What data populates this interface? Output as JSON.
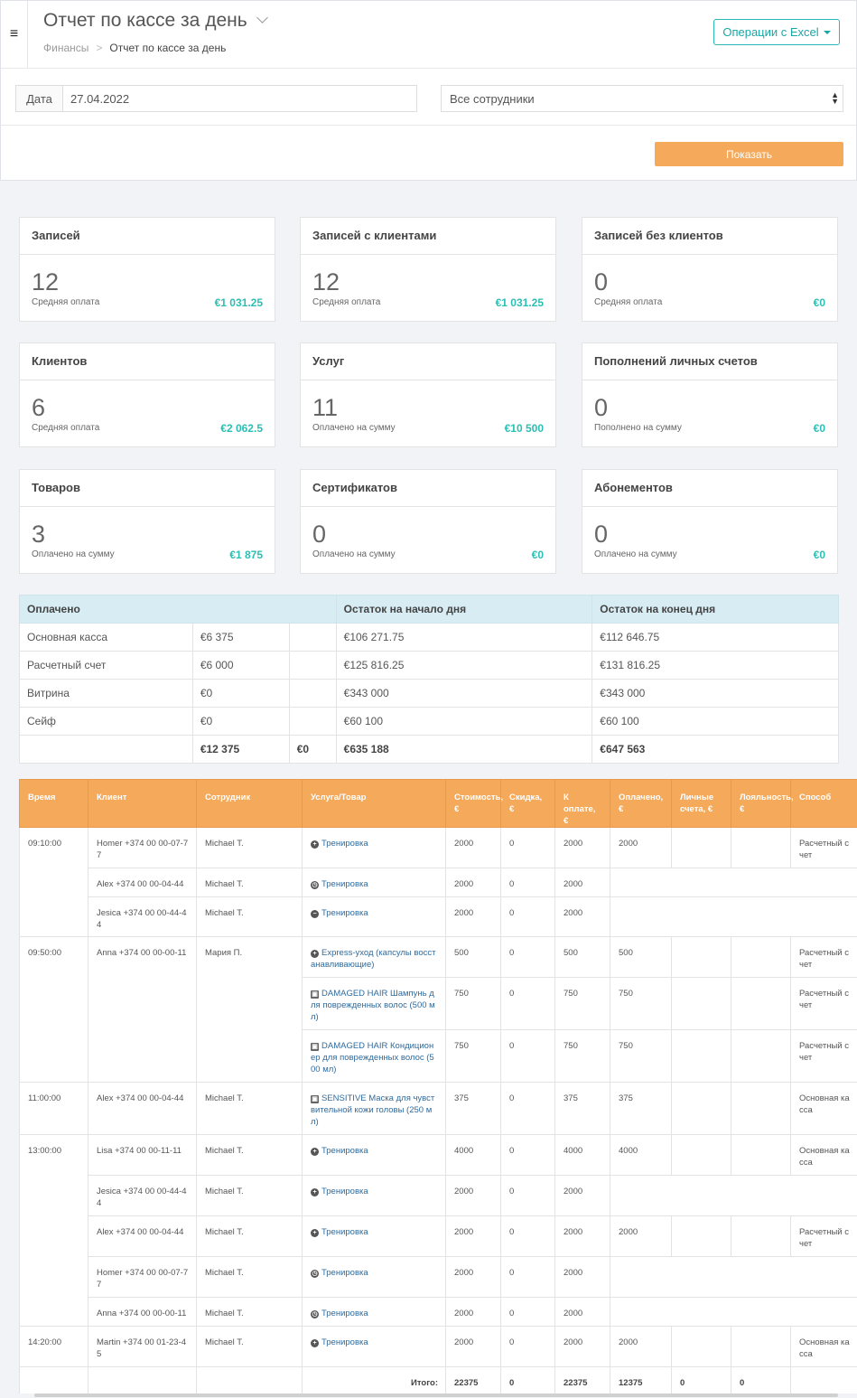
{
  "header": {
    "menu_icon": "hamburger-icon",
    "title": "Отчет по кассе за день",
    "breadcrumb": {
      "parent": "Финансы",
      "separator": ">",
      "current": "Отчет по кассе за день"
    },
    "excel_button": "Операции с Excel"
  },
  "filters": {
    "date_label": "Дата",
    "date_value": "27.04.2022",
    "employee_select": "Все сотрудники",
    "show_button": "Показать"
  },
  "cards": [
    {
      "title": "Записей",
      "count": "12",
      "sub": "Средняя оплата",
      "amount": "€1 031.25"
    },
    {
      "title": "Записей с клиентами",
      "count": "12",
      "sub": "Средняя оплата",
      "amount": "€1 031.25"
    },
    {
      "title": "Записей без клиентов",
      "count": "0",
      "sub": "Средняя оплата",
      "amount": "€0"
    },
    {
      "title": "Клиентов",
      "count": "6",
      "sub": "Средняя оплата",
      "amount": "€2 062.5"
    },
    {
      "title": "Услуг",
      "count": "11",
      "sub": "Оплачено на сумму",
      "amount": "€10 500"
    },
    {
      "title": "Пополнений личных счетов",
      "count": "0",
      "sub": "Пополнено на сумму",
      "amount": "€0"
    },
    {
      "title": "Товаров",
      "count": "3",
      "sub": "Оплачено на сумму",
      "amount": "€1 875"
    },
    {
      "title": "Сертификатов",
      "count": "0",
      "sub": "Оплачено на сумму",
      "amount": "€0"
    },
    {
      "title": "Абонементов",
      "count": "0",
      "sub": "Оплачено на сумму",
      "amount": "€0"
    }
  ],
  "balance": {
    "headers": [
      "Оплачено",
      "Остаток на начало дня",
      "Остаток на конец дня"
    ],
    "rows": [
      {
        "name": "Основная касса",
        "paid": "€6 375",
        "extra": "",
        "start": "€106 271.75",
        "end": "€112 646.75"
      },
      {
        "name": "Расчетный счет",
        "paid": "€6 000",
        "extra": "",
        "start": "€125 816.25",
        "end": "€131 816.25"
      },
      {
        "name": "Витрина",
        "paid": "€0",
        "extra": "",
        "start": "€343 000",
        "end": "€343 000"
      },
      {
        "name": "Сейф",
        "paid": "€0",
        "extra": "",
        "start": "€60 100",
        "end": "€60 100"
      }
    ],
    "total": {
      "name": "",
      "paid": "€12 375",
      "extra": "€0",
      "start": "€635 188",
      "end": "€647 563"
    }
  },
  "operations": {
    "headers": [
      "Время",
      "Клиент",
      "Сотрудник",
      "Услуга/Товар",
      "Стоимость, €",
      "Скидка, €",
      "К оплате, €",
      "Оплачено, €",
      "Личные счета, €",
      "Лояльность, €",
      "Способ"
    ],
    "rows": [
      {
        "time": "09:10:00",
        "client": "Homer +374 00 00-07-77",
        "employee": "Michael T.",
        "icon": "plus",
        "service": "Тренировка",
        "cost": "2000",
        "discount": "0",
        "to_pay": "2000",
        "paid": "2000",
        "personal": "",
        "loyalty": "",
        "method": "Расчетный счет"
      },
      {
        "time": "",
        "client": "Alex +374 00 00-04-44",
        "employee": "Michael T.",
        "icon": "clock",
        "service": "Тренировка",
        "cost": "2000",
        "discount": "0",
        "to_pay": "2000",
        "paid": null,
        "personal": null,
        "loyalty": null,
        "method": null
      },
      {
        "time": "",
        "client": "Jesica +374 00 00-44-44",
        "employee": "Michael T.",
        "icon": "minus",
        "service": "Тренировка",
        "cost": "2000",
        "discount": "0",
        "to_pay": "2000",
        "paid": null,
        "personal": null,
        "loyalty": null,
        "method": null
      },
      {
        "time": "09:50:00",
        "client": "Anna +374 00 00-00-11",
        "employee": "Мария П.",
        "icon": "plus",
        "service": "Express-уход (капсулы восстанавливающие)",
        "cost": "500",
        "discount": "0",
        "to_pay": "500",
        "paid": "500",
        "personal": "",
        "loyalty": "",
        "method": "Расчетный счет"
      },
      {
        "time": "",
        "client": "",
        "employee": "",
        "icon": "box",
        "service": "DAMAGED HAIR Шампунь для поврежденных волос (500 мл)",
        "cost": "750",
        "discount": "0",
        "to_pay": "750",
        "paid": "750",
        "personal": "",
        "loyalty": "",
        "method": "Расчетный счет"
      },
      {
        "time": "",
        "client": "",
        "employee": "",
        "icon": "box",
        "service": "DAMAGED HAIR Кондиционер для поврежденных волос (500 мл)",
        "cost": "750",
        "discount": "0",
        "to_pay": "750",
        "paid": "750",
        "personal": "",
        "loyalty": "",
        "method": "Расчетный счет"
      },
      {
        "time": "11:00:00",
        "client": "Alex +374 00 00-04-44",
        "employee": "Michael T.",
        "icon": "box",
        "service": "SENSITIVE Маска для чувствительной кожи головы (250 мл)",
        "cost": "375",
        "discount": "0",
        "to_pay": "375",
        "paid": "375",
        "personal": "",
        "loyalty": "",
        "method": "Основная касса"
      },
      {
        "time": "13:00:00",
        "client": "Lisa +374 00 00-11-11",
        "employee": "Michael T.",
        "icon": "plus",
        "service": "Тренировка",
        "cost": "4000",
        "discount": "0",
        "to_pay": "4000",
        "paid": "4000",
        "personal": "",
        "loyalty": "",
        "method": "Основная касса"
      },
      {
        "time": "",
        "client": "Jesica +374 00 00-44-44",
        "employee": "Michael T.",
        "icon": "plus",
        "service": "Тренировка",
        "cost": "2000",
        "discount": "0",
        "to_pay": "2000",
        "paid": null,
        "personal": null,
        "loyalty": null,
        "method": null
      },
      {
        "time": "",
        "client": "Alex +374 00 00-04-44",
        "employee": "Michael T.",
        "icon": "plus",
        "service": "Тренировка",
        "cost": "2000",
        "discount": "0",
        "to_pay": "2000",
        "paid": "2000",
        "personal": "",
        "loyalty": "",
        "method": "Расчетный счет"
      },
      {
        "time": "",
        "client": "Homer +374 00 00-07-77",
        "employee": "Michael T.",
        "icon": "clock",
        "service": "Тренировка",
        "cost": "2000",
        "discount": "0",
        "to_pay": "2000",
        "paid": null,
        "personal": null,
        "loyalty": null,
        "method": null
      },
      {
        "time": "",
        "client": "Anna +374 00 00-00-11",
        "employee": "Michael T.",
        "icon": "clock",
        "service": "Тренировка",
        "cost": "2000",
        "discount": "0",
        "to_pay": "2000",
        "paid": null,
        "personal": null,
        "loyalty": null,
        "method": null
      },
      {
        "time": "14:20:00",
        "client": "Martin +374 00 01-23-45",
        "employee": "Michael T.",
        "icon": "plus",
        "service": "Тренировка",
        "cost": "2000",
        "discount": "0",
        "to_pay": "2000",
        "paid": "2000",
        "personal": "",
        "loyalty": "",
        "method": "Основная касса"
      }
    ],
    "total": {
      "label": "Итого:",
      "cost": "22375",
      "discount": "0",
      "to_pay": "22375",
      "paid": "12375",
      "personal": "0",
      "loyalty": "0",
      "method": ""
    }
  },
  "colors": {
    "accent_teal": "#1ba6a6",
    "orange": "#f5a95a",
    "amount_teal": "#2bbfb3",
    "table_header_blue": "#d8ecf3"
  }
}
